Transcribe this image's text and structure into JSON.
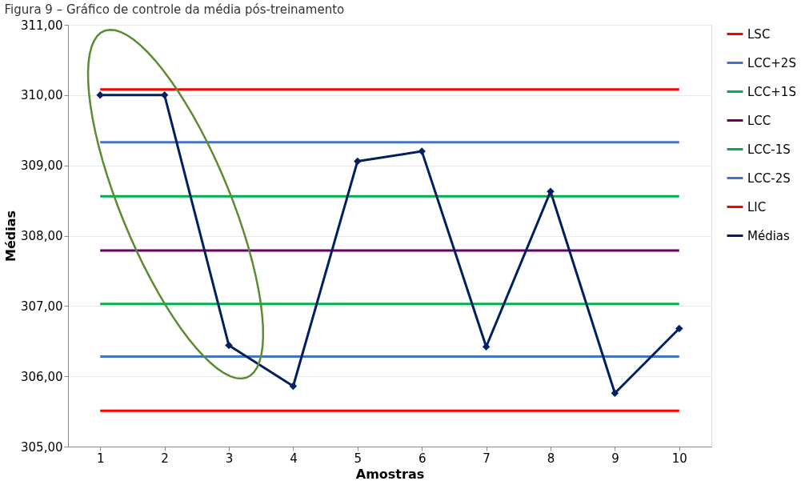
{
  "chart_data": {
    "type": "line",
    "title": "Figura 9 – Gráfico de controle da média pós-treinamento",
    "xlabel": "Amostras",
    "ylabel": "Médias",
    "categories": [
      "1",
      "2",
      "3",
      "4",
      "5",
      "6",
      "7",
      "8",
      "9",
      "10"
    ],
    "series": [
      {
        "name": "LSC",
        "color": "#ff0000",
        "marker": "none",
        "values": [
          310.08,
          310.08,
          310.08,
          310.08,
          310.08,
          310.08,
          310.08,
          310.08,
          310.08,
          310.08
        ]
      },
      {
        "name": "LCC+2S",
        "color": "#4472c4",
        "marker": "none",
        "values": [
          309.33,
          309.33,
          309.33,
          309.33,
          309.33,
          309.33,
          309.33,
          309.33,
          309.33,
          309.33
        ]
      },
      {
        "name": "LCC+1S",
        "color": "#00b050",
        "marker": "none",
        "values": [
          308.56,
          308.56,
          308.56,
          308.56,
          308.56,
          308.56,
          308.56,
          308.56,
          308.56,
          308.56
        ]
      },
      {
        "name": "LCC",
        "color": "#660066",
        "marker": "none",
        "values": [
          307.79,
          307.79,
          307.79,
          307.79,
          307.79,
          307.79,
          307.79,
          307.79,
          307.79,
          307.79
        ]
      },
      {
        "name": "LCC-1S",
        "color": "#00b050",
        "marker": "none",
        "values": [
          307.03,
          307.03,
          307.03,
          307.03,
          307.03,
          307.03,
          307.03,
          307.03,
          307.03,
          307.03
        ]
      },
      {
        "name": "LCC-2S",
        "color": "#4472c4",
        "marker": "none",
        "values": [
          306.28,
          306.28,
          306.28,
          306.28,
          306.28,
          306.28,
          306.28,
          306.28,
          306.28,
          306.28
        ]
      },
      {
        "name": "LIC",
        "color": "#ff0000",
        "marker": "none",
        "values": [
          305.51,
          305.51,
          305.51,
          305.51,
          305.51,
          305.51,
          305.51,
          305.51,
          305.51,
          305.51
        ]
      },
      {
        "name": "Médias",
        "color": "#002060",
        "marker": "diamond",
        "values": [
          310.0,
          310.0,
          306.44,
          305.86,
          309.06,
          309.2,
          306.42,
          308.63,
          305.76,
          306.68
        ]
      }
    ],
    "ylim": [
      305,
      311
    ],
    "yticks": [
      {
        "value": 305,
        "label": "305,00"
      },
      {
        "value": 306,
        "label": "306,00"
      },
      {
        "value": 307,
        "label": "307,00"
      },
      {
        "value": 308,
        "label": "308,00"
      },
      {
        "value": 309,
        "label": "309,00"
      },
      {
        "value": 310,
        "label": "310,00"
      },
      {
        "value": 311,
        "label": "311,00"
      }
    ],
    "grid": "y",
    "legend": "right",
    "line_style": "solid"
  }
}
